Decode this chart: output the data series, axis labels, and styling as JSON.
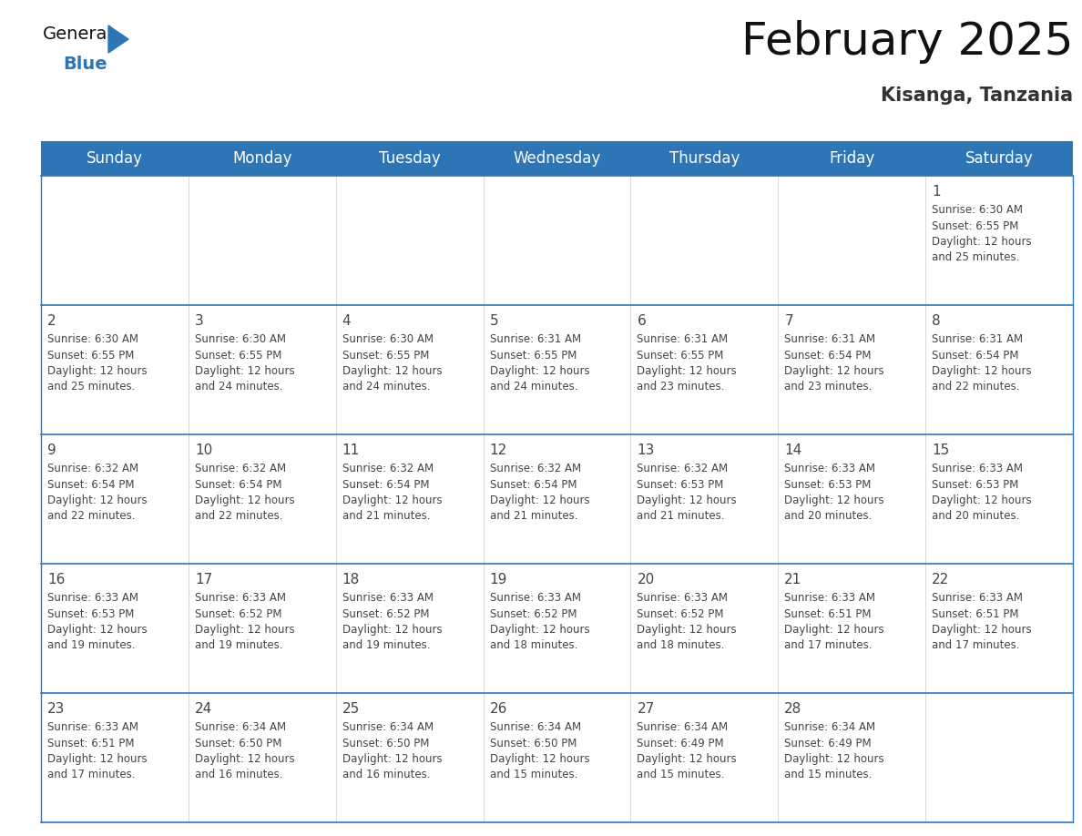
{
  "title": "February 2025",
  "subtitle": "Kisanga, Tanzania",
  "header_bg_color": "#2E75B6",
  "header_text_color": "#FFFFFF",
  "border_color": "#2E75B6",
  "cell_line_color": "#AAAAAA",
  "text_color": "#444444",
  "bg_color": "#FFFFFF",
  "days_of_week": [
    "Sunday",
    "Monday",
    "Tuesday",
    "Wednesday",
    "Thursday",
    "Friday",
    "Saturday"
  ],
  "calendar_data": [
    [
      null,
      null,
      null,
      null,
      null,
      null,
      {
        "day": "1",
        "sunrise": "6:30 AM",
        "sunset": "6:55 PM",
        "daylight": "12 hours",
        "daylight2": "and 25 minutes."
      }
    ],
    [
      {
        "day": "2",
        "sunrise": "6:30 AM",
        "sunset": "6:55 PM",
        "daylight": "12 hours",
        "daylight2": "and 25 minutes."
      },
      {
        "day": "3",
        "sunrise": "6:30 AM",
        "sunset": "6:55 PM",
        "daylight": "12 hours",
        "daylight2": "and 24 minutes."
      },
      {
        "day": "4",
        "sunrise": "6:30 AM",
        "sunset": "6:55 PM",
        "daylight": "12 hours",
        "daylight2": "and 24 minutes."
      },
      {
        "day": "5",
        "sunrise": "6:31 AM",
        "sunset": "6:55 PM",
        "daylight": "12 hours",
        "daylight2": "and 24 minutes."
      },
      {
        "day": "6",
        "sunrise": "6:31 AM",
        "sunset": "6:55 PM",
        "daylight": "12 hours",
        "daylight2": "and 23 minutes."
      },
      {
        "day": "7",
        "sunrise": "6:31 AM",
        "sunset": "6:54 PM",
        "daylight": "12 hours",
        "daylight2": "and 23 minutes."
      },
      {
        "day": "8",
        "sunrise": "6:31 AM",
        "sunset": "6:54 PM",
        "daylight": "12 hours",
        "daylight2": "and 22 minutes."
      }
    ],
    [
      {
        "day": "9",
        "sunrise": "6:32 AM",
        "sunset": "6:54 PM",
        "daylight": "12 hours",
        "daylight2": "and 22 minutes."
      },
      {
        "day": "10",
        "sunrise": "6:32 AM",
        "sunset": "6:54 PM",
        "daylight": "12 hours",
        "daylight2": "and 22 minutes."
      },
      {
        "day": "11",
        "sunrise": "6:32 AM",
        "sunset": "6:54 PM",
        "daylight": "12 hours",
        "daylight2": "and 21 minutes."
      },
      {
        "day": "12",
        "sunrise": "6:32 AM",
        "sunset": "6:54 PM",
        "daylight": "12 hours",
        "daylight2": "and 21 minutes."
      },
      {
        "day": "13",
        "sunrise": "6:32 AM",
        "sunset": "6:53 PM",
        "daylight": "12 hours",
        "daylight2": "and 21 minutes."
      },
      {
        "day": "14",
        "sunrise": "6:33 AM",
        "sunset": "6:53 PM",
        "daylight": "12 hours",
        "daylight2": "and 20 minutes."
      },
      {
        "day": "15",
        "sunrise": "6:33 AM",
        "sunset": "6:53 PM",
        "daylight": "12 hours",
        "daylight2": "and 20 minutes."
      }
    ],
    [
      {
        "day": "16",
        "sunrise": "6:33 AM",
        "sunset": "6:53 PM",
        "daylight": "12 hours",
        "daylight2": "and 19 minutes."
      },
      {
        "day": "17",
        "sunrise": "6:33 AM",
        "sunset": "6:52 PM",
        "daylight": "12 hours",
        "daylight2": "and 19 minutes."
      },
      {
        "day": "18",
        "sunrise": "6:33 AM",
        "sunset": "6:52 PM",
        "daylight": "12 hours",
        "daylight2": "and 19 minutes."
      },
      {
        "day": "19",
        "sunrise": "6:33 AM",
        "sunset": "6:52 PM",
        "daylight": "12 hours",
        "daylight2": "and 18 minutes."
      },
      {
        "day": "20",
        "sunrise": "6:33 AM",
        "sunset": "6:52 PM",
        "daylight": "12 hours",
        "daylight2": "and 18 minutes."
      },
      {
        "day": "21",
        "sunrise": "6:33 AM",
        "sunset": "6:51 PM",
        "daylight": "12 hours",
        "daylight2": "and 17 minutes."
      },
      {
        "day": "22",
        "sunrise": "6:33 AM",
        "sunset": "6:51 PM",
        "daylight": "12 hours",
        "daylight2": "and 17 minutes."
      }
    ],
    [
      {
        "day": "23",
        "sunrise": "6:33 AM",
        "sunset": "6:51 PM",
        "daylight": "12 hours",
        "daylight2": "and 17 minutes."
      },
      {
        "day": "24",
        "sunrise": "6:34 AM",
        "sunset": "6:50 PM",
        "daylight": "12 hours",
        "daylight2": "and 16 minutes."
      },
      {
        "day": "25",
        "sunrise": "6:34 AM",
        "sunset": "6:50 PM",
        "daylight": "12 hours",
        "daylight2": "and 16 minutes."
      },
      {
        "day": "26",
        "sunrise": "6:34 AM",
        "sunset": "6:50 PM",
        "daylight": "12 hours",
        "daylight2": "and 15 minutes."
      },
      {
        "day": "27",
        "sunrise": "6:34 AM",
        "sunset": "6:49 PM",
        "daylight": "12 hours",
        "daylight2": "and 15 minutes."
      },
      {
        "day": "28",
        "sunrise": "6:34 AM",
        "sunset": "6:49 PM",
        "daylight": "12 hours",
        "daylight2": "and 15 minutes."
      },
      null
    ]
  ],
  "logo_color_general": "#111111",
  "logo_color_blue": "#2E75B6",
  "logo_triangle_color": "#2E75B6",
  "title_fontsize": 36,
  "subtitle_fontsize": 15,
  "header_fontsize": 12,
  "day_num_fontsize": 11,
  "cell_fontsize": 8.5
}
